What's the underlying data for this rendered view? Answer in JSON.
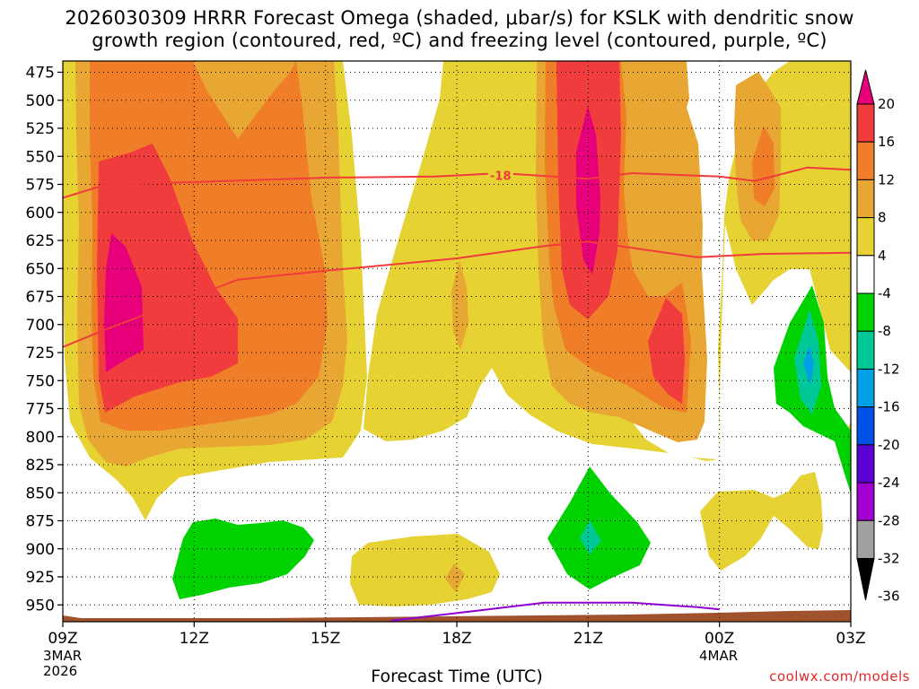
{
  "chart_data": {
    "type": "heatmap",
    "title_line1": "2026030309 HRRR Forecast Omega (shaded, μbar/s) for KSLK with dendritic snow",
    "title_line2": "growth region (contoured, red, ºC) and freezing level (contoured, purple, ºC)",
    "xlabel": "Forecast Time (UTC)",
    "x_ticks": [
      "09Z",
      "12Z",
      "15Z",
      "18Z",
      "21Z",
      "00Z",
      "03Z"
    ],
    "x_date_labels": [
      {
        "at": "09Z",
        "month": "3MAR",
        "year": "2026"
      },
      {
        "at": "00Z",
        "month": "4MAR",
        "year": ""
      }
    ],
    "y_ticks": [
      475,
      500,
      525,
      550,
      575,
      600,
      625,
      650,
      675,
      700,
      725,
      750,
      775,
      800,
      825,
      850,
      875,
      900,
      925,
      950
    ],
    "ylim": [
      465,
      965
    ],
    "colorbar_levels": [
      20,
      16,
      12,
      8,
      4,
      -4,
      -8,
      -12,
      -16,
      -20,
      -24,
      -28,
      -32,
      -36
    ],
    "colorbar_colors": [
      "#e8007a",
      "#f03c3c",
      "#f07d28",
      "#e8a632",
      "#e6d232",
      "#ffffff",
      "#00d200",
      "#00c896",
      "#00a0e6",
      "#0050e6",
      "#5a00d2",
      "#a000d2",
      "#a0a0a0",
      "#000000"
    ],
    "contour_label": "-18",
    "dgz_upper_pressure": [
      [
        9,
        587
      ],
      [
        10,
        575
      ],
      [
        12,
        573
      ],
      [
        15,
        569
      ],
      [
        17.5,
        568
      ],
      [
        19,
        565
      ],
      [
        21,
        570
      ],
      [
        22,
        565
      ],
      [
        24,
        568
      ],
      [
        24.8,
        572
      ],
      [
        26,
        560
      ],
      [
        27,
        562
      ]
    ],
    "dgz_lower_pressure": [
      [
        9,
        720
      ],
      [
        10,
        704
      ],
      [
        13,
        660
      ],
      [
        15,
        652
      ],
      [
        18,
        641
      ],
      [
        20,
        630
      ],
      [
        21,
        626
      ],
      [
        23.5,
        640
      ],
      [
        25,
        637
      ],
      [
        27,
        636
      ]
    ],
    "freezing_level_pressure": [
      [
        16.5,
        964
      ],
      [
        18.5,
        955
      ],
      [
        20,
        948
      ],
      [
        22,
        948
      ],
      [
        23.5,
        952
      ],
      [
        24,
        954
      ]
    ],
    "credit": "coolwx.com/models"
  }
}
